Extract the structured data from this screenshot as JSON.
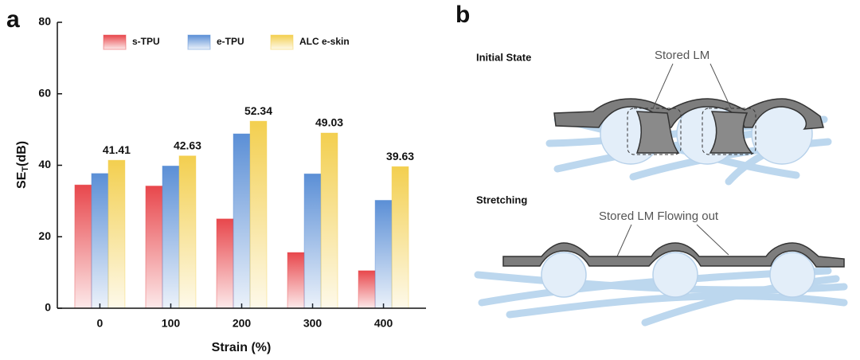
{
  "panel_labels": [
    "a",
    "b"
  ],
  "chart_data": {
    "type": "bar",
    "categories": [
      "0",
      "100",
      "200",
      "300",
      "400"
    ],
    "series": [
      {
        "name": "s-TPU",
        "color": "#e8474c",
        "values": [
          34.5,
          34.2,
          25.0,
          15.6,
          10.5
        ]
      },
      {
        "name": "e-TPU",
        "color": "#5b8fd6",
        "values": [
          37.7,
          39.8,
          48.8,
          37.6,
          30.2
        ]
      },
      {
        "name": "ALC e-skin",
        "color": "#f3cf4f",
        "values": [
          41.41,
          42.63,
          52.34,
          49.03,
          39.63
        ],
        "show_values": true
      }
    ],
    "ylim": [
      0,
      80
    ],
    "yticks": [
      0,
      20,
      40,
      60,
      80
    ],
    "xlabel": "Strain (%)",
    "ylabel": {
      "main": "SE",
      "sub": "T",
      "unit": "(dB)"
    },
    "legend": "top"
  },
  "diagram": {
    "initial_state": "Initial State",
    "stored_lm": "Stored LM",
    "stretching": "Stretching",
    "flowing_out": "Stored LM Flowing out"
  }
}
